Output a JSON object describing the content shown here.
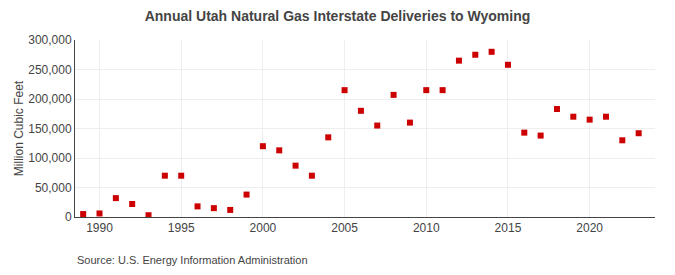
{
  "chart_data": {
    "type": "scatter",
    "title": "Annual Utah Natural Gas Interstate Deliveries to Wyoming",
    "y_label": "Million Cubic Feet",
    "annotations": [
      {
        "text": "Source: U.S. Energy Information Administration"
      }
    ],
    "x": [
      1989,
      1990,
      1991,
      1992,
      1993,
      1994,
      1995,
      1996,
      1997,
      1998,
      1999,
      2000,
      2001,
      2002,
      2003,
      2004,
      2005,
      2006,
      2007,
      2008,
      2009,
      2010,
      2011,
      2012,
      2013,
      2014,
      2015,
      2016,
      2017,
      2018,
      2019,
      2020,
      2021,
      2022,
      2023
    ],
    "values": [
      5000,
      6000,
      32000,
      22000,
      3000,
      70000,
      70000,
      18000,
      15000,
      12000,
      38000,
      120000,
      113000,
      87000,
      70000,
      135000,
      215000,
      180000,
      155000,
      207000,
      160000,
      215000,
      215000,
      265000,
      275000,
      280000,
      258000,
      143000,
      138000,
      183000,
      170000,
      165000,
      170000,
      130000,
      142000
    ],
    "color": "#cc0000",
    "marker": "square",
    "xlim": [
      1988.5,
      2024
    ],
    "xticks": [
      1990,
      1995,
      2000,
      2005,
      2010,
      2015,
      2020
    ],
    "ylim": [
      0,
      300000
    ],
    "yticks": [
      0,
      {
        "value": 50000,
        "label": "50,000"
      },
      {
        "value": 100000,
        "label": "100,000"
      },
      {
        "value": 150000,
        "label": "150,000"
      },
      {
        "value": 200000,
        "label": "200,000"
      },
      {
        "value": 250000,
        "label": "250,000"
      },
      {
        "value": 300000,
        "label": "300,000"
      }
    ],
    "grid": true
  }
}
